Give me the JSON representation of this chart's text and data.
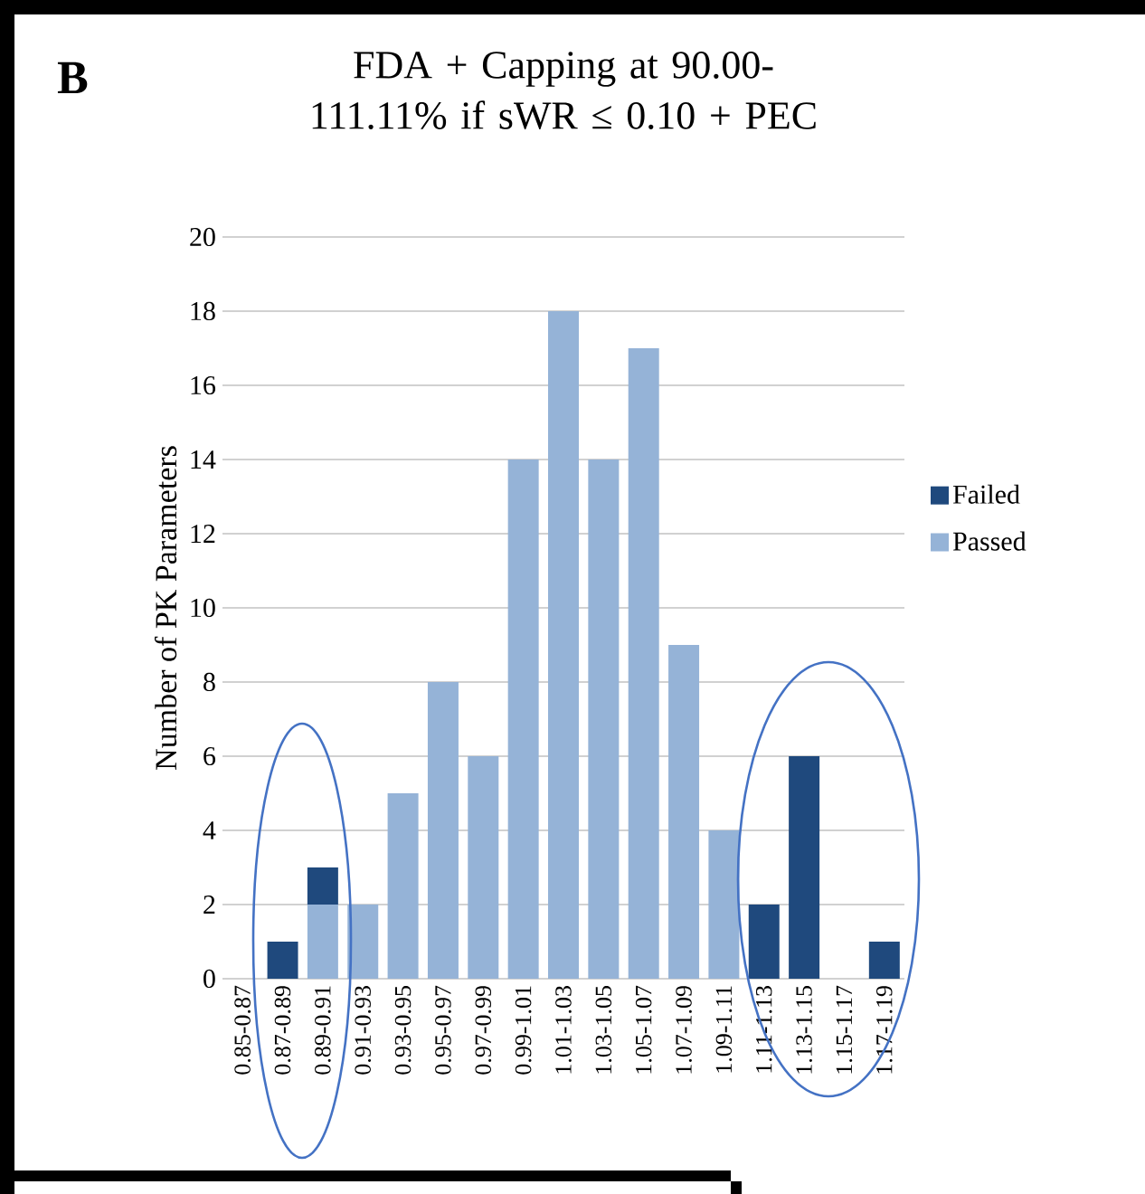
{
  "chart_data": {
    "type": "bar",
    "title": "FDA + Capping at 90.00-111.11% if sWR ≤ 0.10 + PEC",
    "ylabel": "Number of PK Parameters",
    "annotations": [
      "B"
    ],
    "categories": [
      "0.85-0.87",
      "0.87-0.89",
      "0.89-0.91",
      "0.91-0.93",
      "0.93-0.95",
      "0.95-0.97",
      "0.97-0.99",
      "0.99-1.01",
      "1.01-1.03",
      "1.03-1.05",
      "1.05-1.07",
      "1.07-1.09",
      "1.09-1.11",
      "1.11-1.13",
      "1.13-1.15",
      "1.15-1.17",
      "1.17-1.19"
    ],
    "series": [
      {
        "name": "Passed",
        "color": "#95b3d7",
        "values": [
          0,
          0,
          2,
          2,
          5,
          8,
          6,
          14,
          18,
          14,
          17,
          9,
          4,
          0,
          0,
          0,
          0
        ]
      },
      {
        "name": "Failed",
        "color": "#1f497d",
        "values": [
          0,
          1,
          1,
          0,
          0,
          0,
          0,
          0,
          0,
          0,
          0,
          0,
          0,
          2,
          6,
          0,
          1
        ]
      }
    ],
    "stacked": true,
    "ylim": [
      0,
      20
    ],
    "yticks": [
      0,
      2,
      4,
      6,
      8,
      10,
      12,
      14,
      16,
      18,
      20
    ],
    "grid": "y",
    "legend": "right"
  }
}
